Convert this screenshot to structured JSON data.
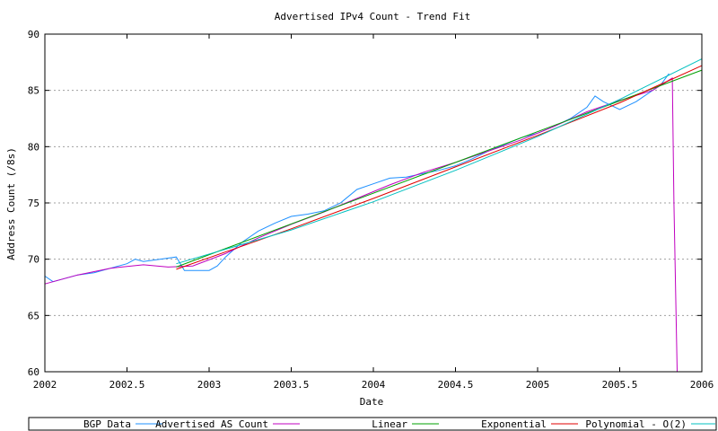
{
  "chart_data": {
    "type": "line",
    "title": "Advertised IPv4 Count - Trend Fit",
    "xlabel": "Date",
    "ylabel": "Address Count (/8s)",
    "xlim": [
      2002,
      2006
    ],
    "ylim": [
      60,
      90
    ],
    "x_ticks": [
      "2002",
      "2002.5",
      "2003",
      "2003.5",
      "2004",
      "2004.5",
      "2005",
      "2005.5",
      "2006"
    ],
    "y_ticks": [
      "60",
      "65",
      "70",
      "75",
      "80",
      "85",
      "90"
    ],
    "grid": "horizontal-dotted",
    "legend_position": "bottom",
    "legend": [
      {
        "label": "BGP Data",
        "color": "#1e90ff"
      },
      {
        "label": "Advertised AS Count",
        "color": "#c000c0"
      },
      {
        "label": "Linear",
        "color": "#00a000"
      },
      {
        "label": "Exponential",
        "color": "#e00000"
      },
      {
        "label": "Polynomial - O(2)",
        "color": "#00c0c0"
      }
    ],
    "series": [
      {
        "name": "BGP Data",
        "color": "#1e90ff",
        "x": [
          2002.0,
          2002.05,
          2002.1,
          2002.2,
          2002.3,
          2002.4,
          2002.5,
          2002.55,
          2002.6,
          2002.7,
          2002.8,
          2002.85,
          2002.9,
          2003.0,
          2003.05,
          2003.1,
          2003.2,
          2003.3,
          2003.4,
          2003.5,
          2003.6,
          2003.7,
          2003.8,
          2003.9,
          2004.0,
          2004.1,
          2004.2,
          2004.3,
          2004.4,
          2004.5,
          2004.6,
          2004.7,
          2004.8,
          2004.9,
          2005.0,
          2005.1,
          2005.2,
          2005.3,
          2005.35,
          2005.4,
          2005.5,
          2005.6,
          2005.7,
          2005.75,
          2005.8
        ],
        "y": [
          68.5,
          68.0,
          68.2,
          68.6,
          68.8,
          69.2,
          69.6,
          70.0,
          69.8,
          70.0,
          70.2,
          69.0,
          69.0,
          69.0,
          69.4,
          70.2,
          71.5,
          72.5,
          73.2,
          73.8,
          74.0,
          74.3,
          75.0,
          76.2,
          76.7,
          77.2,
          77.3,
          77.6,
          77.9,
          78.3,
          78.9,
          79.6,
          80.2,
          80.8,
          81.2,
          81.8,
          82.5,
          83.5,
          84.5,
          84.0,
          83.3,
          84.0,
          85.0,
          85.5,
          86.5
        ]
      },
      {
        "name": "Advertised AS Count",
        "color": "#c000c0",
        "x": [
          2002.0,
          2002.2,
          2002.4,
          2002.6,
          2002.75,
          2002.9,
          2003.1,
          2003.3,
          2003.5,
          2003.7,
          2003.9,
          2004.1,
          2004.3,
          2004.5,
          2004.7,
          2004.9,
          2005.1,
          2005.3,
          2005.5,
          2005.7,
          2005.82,
          2005.83,
          2005.85
        ],
        "y": [
          67.8,
          68.6,
          69.2,
          69.5,
          69.3,
          69.4,
          70.5,
          71.9,
          73.1,
          74.2,
          75.4,
          76.6,
          77.7,
          78.6,
          79.6,
          80.6,
          81.8,
          83.1,
          84.1,
          85.0,
          86.1,
          75.0,
          60.0
        ]
      },
      {
        "name": "Linear",
        "color": "#00a000",
        "x": [
          2002.8,
          2006.0
        ],
        "y": [
          69.3,
          86.8
        ]
      },
      {
        "name": "Exponential",
        "color": "#e00000",
        "x": [
          2002.8,
          2003.5,
          2004.0,
          2004.5,
          2005.0,
          2005.5,
          2006.0
        ],
        "y": [
          69.1,
          72.7,
          75.4,
          78.2,
          81.0,
          83.9,
          87.2
        ]
      },
      {
        "name": "Polynomial - O(2)",
        "color": "#00c0c0",
        "x": [
          2002.8,
          2003.5,
          2004.0,
          2004.5,
          2005.0,
          2005.5,
          2006.0
        ],
        "y": [
          69.6,
          72.6,
          75.1,
          77.9,
          80.9,
          84.2,
          87.8
        ]
      }
    ]
  }
}
